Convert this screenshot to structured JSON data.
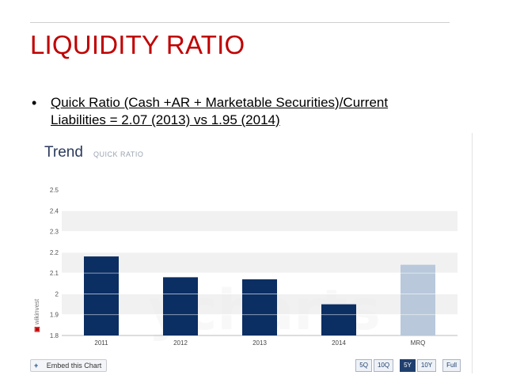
{
  "slide": {
    "title": "LIQUIDITY RATIO",
    "bullet_marker": "•",
    "bullet_text": "Quick Ratio (Cash +AR + Marketable Securities)/Current Liabilities = 2.07 (2013) vs 1.95 (2014)",
    "title_color": "#c00000"
  },
  "widget": {
    "title": "Trend",
    "subtitle": "QUICK RATIO",
    "watermark": "ycharts",
    "brand": "wikinvest",
    "embed_label": "Embed this Chart",
    "embed_icon": "plus-icon",
    "ranges": [
      {
        "label": "5Q",
        "active": false
      },
      {
        "label": "10Q",
        "active": false
      },
      {
        "label": "5Y",
        "active": true
      },
      {
        "label": "10Y",
        "active": false
      },
      {
        "label": "Full",
        "active": false
      }
    ]
  },
  "chart_data": {
    "type": "bar",
    "categories": [
      "2011",
      "2012",
      "2013",
      "2014",
      "MRQ"
    ],
    "values": [
      2.18,
      2.08,
      2.07,
      1.95,
      2.14
    ],
    "ylim": [
      1.8,
      2.5
    ],
    "yticks": [
      "1.8",
      "1.9",
      "2",
      "2.1",
      "2.2",
      "2.3",
      "2.4",
      "2.5"
    ],
    "bar_colors": [
      "#0b2e63",
      "#0b2e63",
      "#0b2e63",
      "#0b2e63",
      "#b9c8db"
    ],
    "grid": true,
    "band_color": "#f1f1f1"
  }
}
